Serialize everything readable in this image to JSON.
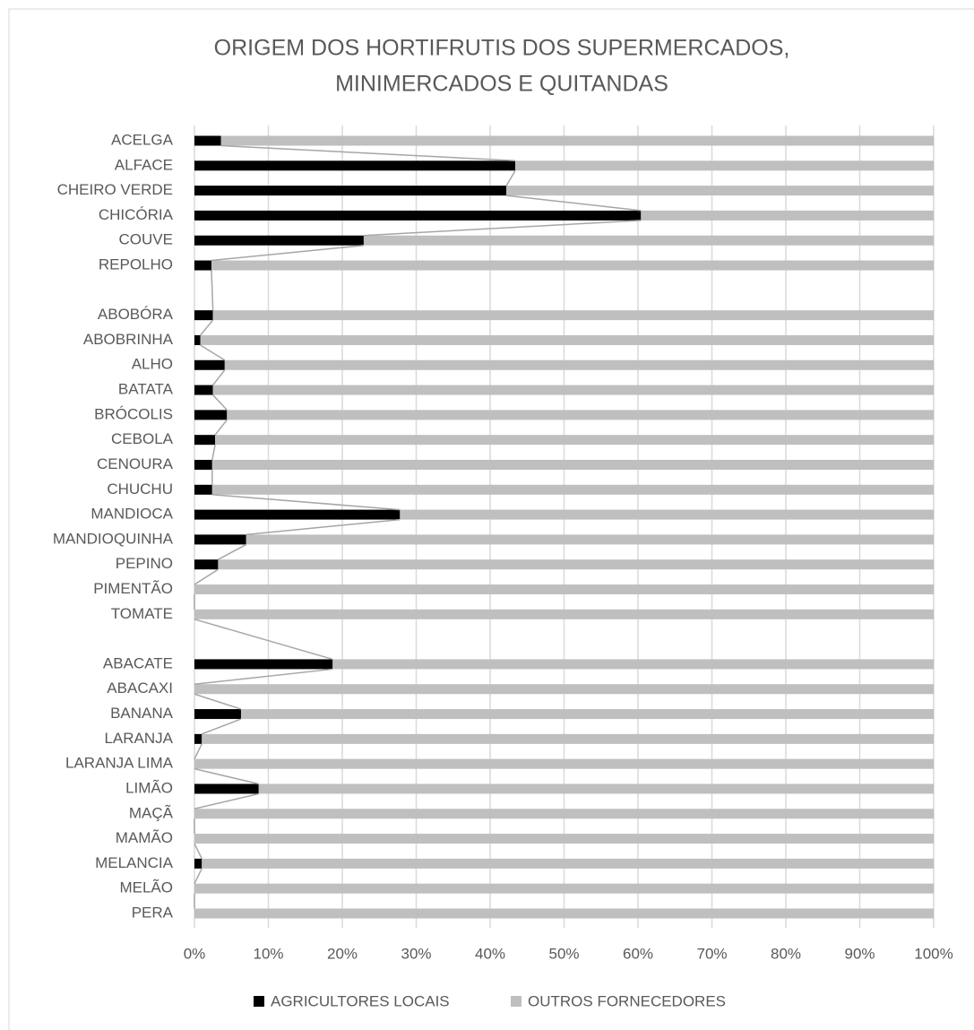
{
  "chart_data": {
    "type": "stacked-bar-horizontal",
    "title": [
      "ORIGEM DOS HORTIFRUTIS DOS SUPERMERCADOS,",
      "MINIMERCADOS E QUITANDAS"
    ],
    "categories": [
      "ACELGA",
      "ALFACE",
      "CHEIRO VERDE",
      "CHICÓRIA",
      "COUVE",
      "REPOLHO",
      null,
      "ABOBÓRA",
      "ABOBRINHA",
      "ALHO",
      "BATATA",
      "BRÓCOLIS",
      "CEBOLA",
      "CENOURA",
      "CHUCHU",
      "MANDIOCA",
      "MANDIOQUINHA",
      "PEPINO",
      "PIMENTÃO",
      "TOMATE",
      null,
      "ABACATE",
      "ABACAXI",
      "BANANA",
      "LARANJA",
      "LARANJA LIMA",
      "LIMÃO",
      "MAÇÃ",
      "MAMÃO",
      "MELANCIA",
      "MELÃO",
      "PERA"
    ],
    "series": [
      {
        "name": "AGRICULTORES LOCAIS",
        "color": "#000000",
        "values": [
          3.6,
          43.4,
          42.2,
          60.4,
          22.9,
          2.3,
          null,
          2.5,
          0.8,
          4.1,
          2.5,
          4.4,
          2.8,
          2.4,
          2.4,
          27.8,
          7.0,
          3.2,
          0,
          0,
          null,
          18.7,
          0,
          6.3,
          1.0,
          0,
          8.7,
          0,
          0,
          1.0,
          0,
          0
        ]
      },
      {
        "name": "OUTROS FORNECEDORES",
        "color": "#bfbfbf",
        "values": [
          96.4,
          56.6,
          57.8,
          39.6,
          77.1,
          97.7,
          null,
          97.5,
          99.2,
          95.9,
          97.5,
          95.6,
          97.2,
          97.6,
          97.6,
          72.2,
          93.0,
          96.8,
          100,
          100,
          null,
          81.3,
          100,
          93.7,
          99.0,
          100,
          91.3,
          100,
          100,
          99.0,
          100,
          100
        ]
      }
    ],
    "xlim": [
      0,
      100
    ],
    "xticks": [
      {
        "value": 0,
        "label": "0%"
      },
      {
        "value": 10,
        "label": "10%"
      },
      {
        "value": 20,
        "label": "20%"
      },
      {
        "value": 30,
        "label": "30%"
      },
      {
        "value": 40,
        "label": "40%"
      },
      {
        "value": 50,
        "label": "50%"
      },
      {
        "value": 60,
        "label": "60%"
      },
      {
        "value": 70,
        "label": "70%"
      },
      {
        "value": 80,
        "label": "80%"
      },
      {
        "value": 90,
        "label": "90%"
      },
      {
        "value": 100,
        "label": "100%"
      }
    ],
    "grid": true,
    "series_lines": true,
    "legend": "bottom"
  }
}
